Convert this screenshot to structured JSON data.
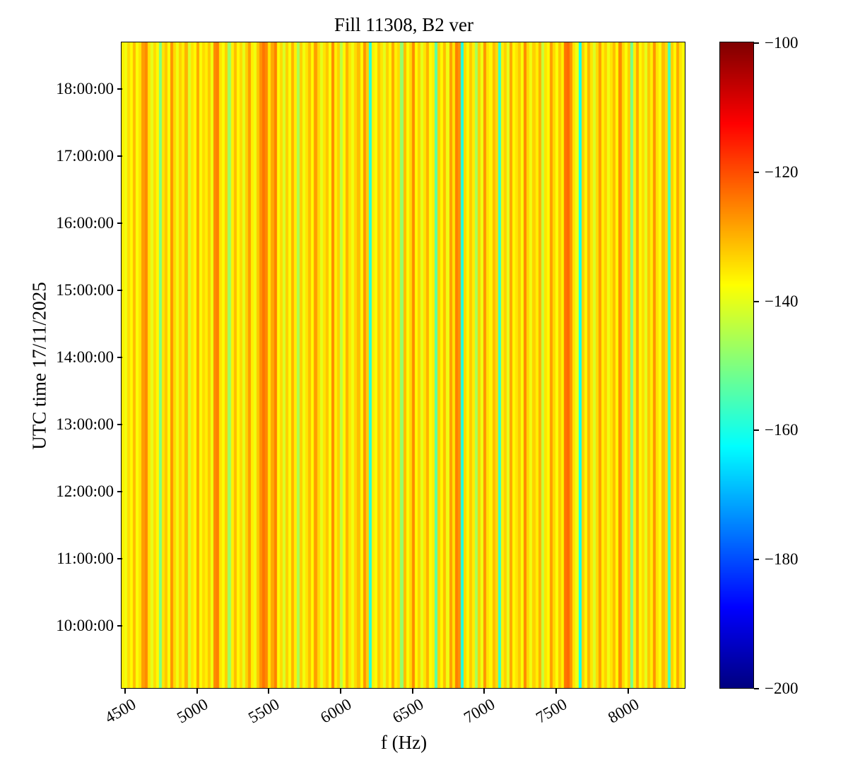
{
  "figure": {
    "title": "Fill 11308, B2 ver",
    "xlabel": "f (Hz)",
    "ylabel": "UTC time 17/11/2025",
    "colors": {
      "background": "#ffffff",
      "spine": "#000000",
      "text": "#000000"
    }
  },
  "chart_data": {
    "type": "heatmap",
    "title": "Fill 11308, B2 ver",
    "xlabel": "f (Hz)",
    "ylabel": "UTC time 17/11/2025",
    "colormap": "jet",
    "color_limits": [
      -200,
      -100
    ],
    "colorbar_ticks": [
      -100,
      -120,
      -140,
      -160,
      -180,
      -200
    ],
    "x_range_hz": [
      4480,
      8400
    ],
    "x_ticks": [
      4500,
      5000,
      5500,
      6000,
      6500,
      7000,
      7500,
      8000
    ],
    "x_tick_rotation_deg": 30,
    "y_ticks": [
      "18:00:00",
      "17:00:00",
      "16:00:00",
      "15:00:00",
      "14:00:00",
      "13:00:00",
      "12:00:00",
      "11:00:00",
      "10:00:00"
    ],
    "y_range": [
      "09:04:00",
      "18:41:00"
    ],
    "grid": false,
    "values_constant_over_time": true,
    "bin_width_hz": 20,
    "column_values_db": [
      -136,
      -139,
      -134,
      -137,
      -131,
      -138,
      -135,
      -128,
      -126,
      -135,
      -140,
      -134,
      -137,
      -150,
      -135,
      -132,
      -138,
      -127,
      -134,
      -139,
      -133,
      -136,
      -130,
      -141,
      -135,
      -137,
      -129,
      -138,
      -134,
      -136,
      -132,
      -139,
      -126,
      -125,
      -135,
      -138,
      -133,
      -147,
      -136,
      -131,
      -137,
      -134,
      -140,
      -133,
      -128,
      -136,
      -139,
      -132,
      -127,
      -124,
      -126,
      -135,
      -129,
      -125,
      -137,
      -134,
      -141,
      -133,
      -138,
      -130,
      -136,
      -146,
      -133,
      -139,
      -135,
      -131,
      -137,
      -128,
      -134,
      -140,
      -135,
      -132,
      -138,
      -126,
      -136,
      -133,
      -144,
      -137,
      -130,
      -135,
      -139,
      -134,
      -131,
      -137,
      -127,
      -133,
      -159,
      -136,
      -138,
      -132,
      -135,
      -140,
      -133,
      -137,
      -129,
      -136,
      -134,
      -148,
      -131,
      -138,
      -134,
      -126,
      -137,
      -133,
      -140,
      -135,
      -130,
      -138,
      -136,
      -154,
      -133,
      -137,
      -131,
      -139,
      -128,
      -135,
      -125,
      -127,
      -160,
      -134,
      -138,
      -132,
      -136,
      -146,
      -133,
      -139,
      -127,
      -135,
      -137,
      -131,
      -134,
      -157,
      -136,
      -133,
      -140,
      -129,
      -137,
      -135,
      -132,
      -138,
      -126,
      -134,
      -139,
      -133,
      -136,
      -130,
      -143,
      -135,
      -137,
      -128,
      -134,
      -138,
      -132,
      -136,
      -124,
      -123,
      -127,
      -135,
      -139,
      -161,
      -133,
      -137,
      -130,
      -135,
      -141,
      -134,
      -128,
      -136,
      -133,
      -139,
      -135,
      -131,
      -137,
      -126,
      -134,
      -138,
      -133,
      -151,
      -136,
      -129,
      -137,
      -134,
      -140,
      -132,
      -136,
      -127,
      -135,
      -138,
      -131,
      -134,
      -156,
      -133,
      -137,
      -129,
      -135,
      -138
    ]
  }
}
